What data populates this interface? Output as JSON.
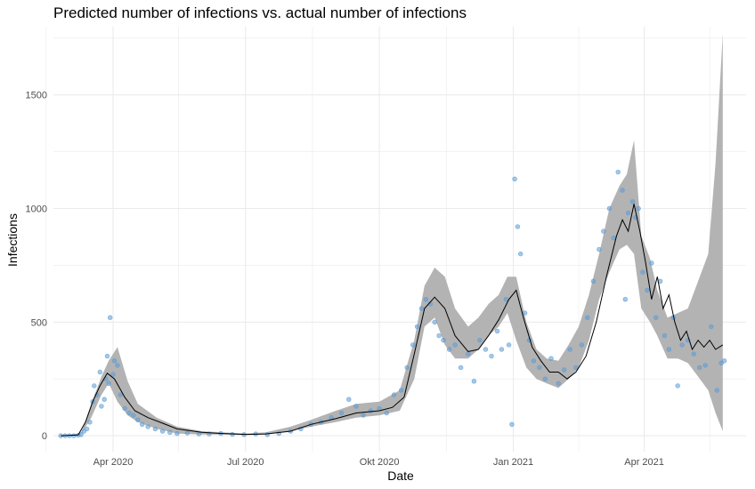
{
  "chart_data": {
    "type": "line",
    "title": "Predicted number of infections vs. actual number of infections",
    "xlabel": "Date",
    "ylabel": "Infections",
    "x_ticks": [
      {
        "date": "2020-04-01",
        "label": "Apr 2020"
      },
      {
        "date": "2020-07-01",
        "label": "Jul 2020"
      },
      {
        "date": "2020-10-01",
        "label": "Okt 2020"
      },
      {
        "date": "2021-01-01",
        "label": "Jan 2021"
      },
      {
        "date": "2021-04-01",
        "label": "Apr 2021"
      }
    ],
    "y_ticks": [
      0,
      500,
      1000,
      1500
    ],
    "xlim": [
      "2020-02-20",
      "2021-06-10"
    ],
    "ylim": [
      -70,
      1800
    ],
    "grid": true,
    "colors": {
      "points": "#5b9bd5",
      "band": "#b3b3b3",
      "line": "#000000",
      "grid": "#ebebeb"
    },
    "series": [
      {
        "name": "",
        "kind": "ribbon",
        "x": [
          "2020-02-25",
          "2020-03-10",
          "2020-03-17",
          "2020-03-24",
          "2020-03-29",
          "2020-04-04",
          "2020-04-11",
          "2020-04-18",
          "2020-05-01",
          "2020-05-15",
          "2020-06-01",
          "2020-06-15",
          "2020-07-01",
          "2020-07-15",
          "2020-08-01",
          "2020-08-15",
          "2020-09-01",
          "2020-09-15",
          "2020-10-01",
          "2020-10-15",
          "2020-10-25",
          "2020-11-01",
          "2020-11-08",
          "2020-11-15",
          "2020-11-22",
          "2020-12-01",
          "2020-12-08",
          "2020-12-15",
          "2020-12-22",
          "2020-12-28",
          "2021-01-03",
          "2021-01-10",
          "2021-01-17",
          "2021-01-24",
          "2021-02-01",
          "2021-02-08",
          "2021-02-15",
          "2021-02-22",
          "2021-03-01",
          "2021-03-08",
          "2021-03-15",
          "2021-03-20",
          "2021-03-25",
          "2021-03-30",
          "2021-04-05",
          "2021-04-10",
          "2021-04-17",
          "2021-04-24",
          "2021-05-01",
          "2021-05-08",
          "2021-05-15",
          "2021-05-20",
          "2021-05-25"
        ],
        "lower": [
          0,
          5,
          80,
          180,
          230,
          150,
          90,
          60,
          30,
          10,
          5,
          5,
          3,
          5,
          20,
          40,
          60,
          80,
          90,
          110,
          250,
          480,
          520,
          400,
          340,
          340,
          380,
          440,
          480,
          540,
          420,
          300,
          250,
          230,
          210,
          250,
          300,
          420,
          600,
          720,
          820,
          840,
          800,
          560,
          500,
          440,
          340,
          340,
          320,
          260,
          200,
          100,
          20
        ],
        "upper": [
          0,
          10,
          140,
          260,
          330,
          390,
          240,
          140,
          80,
          40,
          20,
          15,
          10,
          15,
          40,
          70,
          110,
          140,
          150,
          200,
          420,
          660,
          740,
          700,
          560,
          480,
          520,
          580,
          620,
          700,
          700,
          500,
          380,
          340,
          330,
          400,
          480,
          620,
          800,
          1000,
          1100,
          1150,
          1300,
          880,
          780,
          640,
          520,
          540,
          560,
          680,
          800,
          1200,
          1770
        ]
      },
      {
        "name": "",
        "kind": "line",
        "x": [
          "2020-02-25",
          "2020-03-08",
          "2020-03-13",
          "2020-03-18",
          "2020-03-23",
          "2020-03-28",
          "2020-04-02",
          "2020-04-09",
          "2020-04-16",
          "2020-04-25",
          "2020-05-05",
          "2020-05-15",
          "2020-06-01",
          "2020-06-15",
          "2020-07-01",
          "2020-07-15",
          "2020-08-01",
          "2020-08-15",
          "2020-09-01",
          "2020-09-15",
          "2020-10-01",
          "2020-10-10",
          "2020-10-18",
          "2020-10-25",
          "2020-11-01",
          "2020-11-08",
          "2020-11-15",
          "2020-11-22",
          "2020-12-01",
          "2020-12-08",
          "2020-12-15",
          "2020-12-22",
          "2020-12-29",
          "2021-01-03",
          "2021-01-08",
          "2021-01-14",
          "2021-01-20",
          "2021-01-26",
          "2021-02-01",
          "2021-02-07",
          "2021-02-13",
          "2021-02-20",
          "2021-02-27",
          "2021-03-06",
          "2021-03-13",
          "2021-03-17",
          "2021-03-21",
          "2021-03-25",
          "2021-03-29",
          "2021-04-02",
          "2021-04-06",
          "2021-04-10",
          "2021-04-14",
          "2021-04-18",
          "2021-04-22",
          "2021-04-26",
          "2021-04-30",
          "2021-05-04",
          "2021-05-08",
          "2021-05-12",
          "2021-05-16",
          "2021-05-20",
          "2021-05-25"
        ],
        "y": [
          0,
          3,
          60,
          150,
          220,
          275,
          250,
          170,
          110,
          80,
          55,
          30,
          15,
          10,
          6,
          8,
          20,
          50,
          75,
          100,
          110,
          125,
          170,
          360,
          560,
          610,
          560,
          440,
          370,
          380,
          440,
          510,
          600,
          640,
          520,
          390,
          330,
          280,
          280,
          250,
          280,
          350,
          500,
          700,
          880,
          950,
          900,
          1020,
          900,
          760,
          600,
          700,
          560,
          620,
          500,
          420,
          460,
          380,
          420,
          390,
          420,
          380,
          400
        ]
      },
      {
        "name": "",
        "kind": "points",
        "x": [
          "2020-02-25",
          "2020-02-28",
          "2020-03-02",
          "2020-03-05",
          "2020-03-08",
          "2020-03-10",
          "2020-03-12",
          "2020-03-14",
          "2020-03-16",
          "2020-03-18",
          "2020-03-19",
          "2020-03-21",
          "2020-03-23",
          "2020-03-24",
          "2020-03-26",
          "2020-03-27",
          "2020-03-28",
          "2020-03-29",
          "2020-03-30",
          "2020-04-01",
          "2020-04-02",
          "2020-04-04",
          "2020-04-06",
          "2020-04-09",
          "2020-04-12",
          "2020-04-15",
          "2020-04-18",
          "2020-04-21",
          "2020-04-25",
          "2020-04-30",
          "2020-05-05",
          "2020-05-10",
          "2020-05-15",
          "2020-05-22",
          "2020-05-30",
          "2020-06-06",
          "2020-06-14",
          "2020-06-22",
          "2020-06-30",
          "2020-07-08",
          "2020-07-16",
          "2020-07-24",
          "2020-08-01",
          "2020-08-08",
          "2020-08-15",
          "2020-08-22",
          "2020-08-29",
          "2020-09-05",
          "2020-09-10",
          "2020-09-15",
          "2020-09-20",
          "2020-09-25",
          "2020-10-01",
          "2020-10-06",
          "2020-10-11",
          "2020-10-16",
          "2020-10-20",
          "2020-10-24",
          "2020-10-27",
          "2020-10-30",
          "2020-11-02",
          "2020-11-05",
          "2020-11-08",
          "2020-11-11",
          "2020-11-14",
          "2020-11-18",
          "2020-11-22",
          "2020-11-26",
          "2020-12-01",
          "2020-12-05",
          "2020-12-09",
          "2020-12-13",
          "2020-12-17",
          "2020-12-21",
          "2020-12-24",
          "2020-12-27",
          "2020-12-29",
          "2020-12-31",
          "2021-01-02",
          "2021-01-04",
          "2021-01-06",
          "2021-01-09",
          "2021-01-12",
          "2021-01-15",
          "2021-01-19",
          "2021-01-23",
          "2021-01-27",
          "2021-02-01",
          "2021-02-05",
          "2021-02-09",
          "2021-02-13",
          "2021-02-17",
          "2021-02-21",
          "2021-02-25",
          "2021-03-01",
          "2021-03-04",
          "2021-03-08",
          "2021-03-11",
          "2021-03-14",
          "2021-03-17",
          "2021-03-19",
          "2021-03-21",
          "2021-03-24",
          "2021-03-26",
          "2021-03-28",
          "2021-03-31",
          "2021-04-03",
          "2021-04-06",
          "2021-04-09",
          "2021-04-12",
          "2021-04-15",
          "2021-04-18",
          "2021-04-21",
          "2021-04-24",
          "2021-04-27",
          "2021-05-01",
          "2021-05-05",
          "2021-05-09",
          "2021-05-13",
          "2021-05-17",
          "2021-05-21",
          "2021-05-24",
          "2021-05-26"
        ],
        "y": [
          0,
          0,
          0,
          0,
          2,
          5,
          20,
          30,
          60,
          150,
          220,
          180,
          280,
          130,
          160,
          250,
          350,
          230,
          520,
          270,
          330,
          310,
          180,
          120,
          100,
          90,
          70,
          50,
          40,
          30,
          20,
          15,
          10,
          12,
          8,
          8,
          10,
          6,
          5,
          8,
          5,
          10,
          20,
          30,
          50,
          60,
          80,
          100,
          160,
          130,
          90,
          110,
          120,
          100,
          180,
          200,
          300,
          400,
          480,
          560,
          600,
          580,
          500,
          440,
          420,
          380,
          400,
          300,
          360,
          240,
          420,
          380,
          350,
          460,
          380,
          600,
          400,
          50,
          1130,
          920,
          800,
          540,
          420,
          330,
          300,
          250,
          340,
          230,
          290,
          380,
          300,
          400,
          520,
          680,
          820,
          900,
          1000,
          870,
          1160,
          1080,
          600,
          980,
          1030,
          960,
          1000,
          720,
          640,
          760,
          520,
          680,
          440,
          380,
          520,
          220,
          400,
          420,
          360,
          300,
          310,
          480,
          200,
          320,
          330
        ]
      }
    ]
  }
}
